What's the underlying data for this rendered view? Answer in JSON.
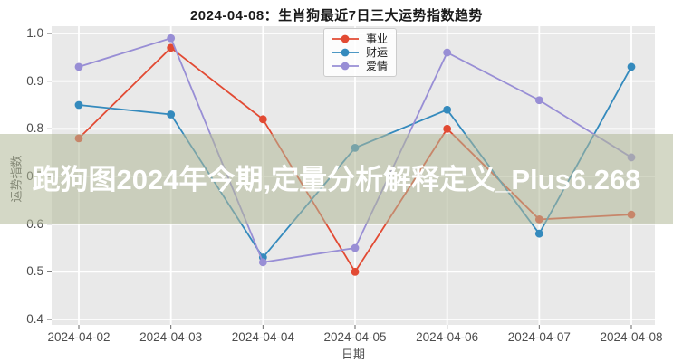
{
  "chart_data": {
    "type": "line",
    "title": "2024-04-08：生肖狗最近7日三大运势指数趋势",
    "categories": [
      "2024-04-02",
      "2024-04-03",
      "2024-04-04",
      "2024-04-05",
      "2024-04-06",
      "2024-04-07",
      "2024-04-08"
    ],
    "series": [
      {
        "name": "事业",
        "color": "#E24A33",
        "values": [
          0.78,
          0.97,
          0.82,
          0.5,
          0.8,
          0.61,
          0.62
        ]
      },
      {
        "name": "财运",
        "color": "#348ABD",
        "values": [
          0.85,
          0.83,
          0.53,
          0.76,
          0.84,
          0.58,
          0.93
        ]
      },
      {
        "name": "爱情",
        "color": "#988ED5",
        "values": [
          0.93,
          0.99,
          0.52,
          0.55,
          0.96,
          0.86,
          0.74
        ]
      }
    ],
    "xlabel": "日期",
    "ylabel": "运势指数",
    "ylim": [
      0.4,
      1.0
    ],
    "yticks": [
      1.0,
      0.9,
      0.8,
      0.7,
      0.6,
      0.5,
      0.4
    ],
    "grid": true,
    "legend_position": "upper center",
    "plot_bg_color": "#e9e9e9",
    "grid_color": "#ffffff",
    "tick_color": "#4d4d4d"
  },
  "watermark": {
    "text": "跑狗图2024年今期,定量分析解释定义_Plus6.268",
    "band_color": "rgba(176,184,152,0.55)",
    "text_color": "#ffffff"
  }
}
